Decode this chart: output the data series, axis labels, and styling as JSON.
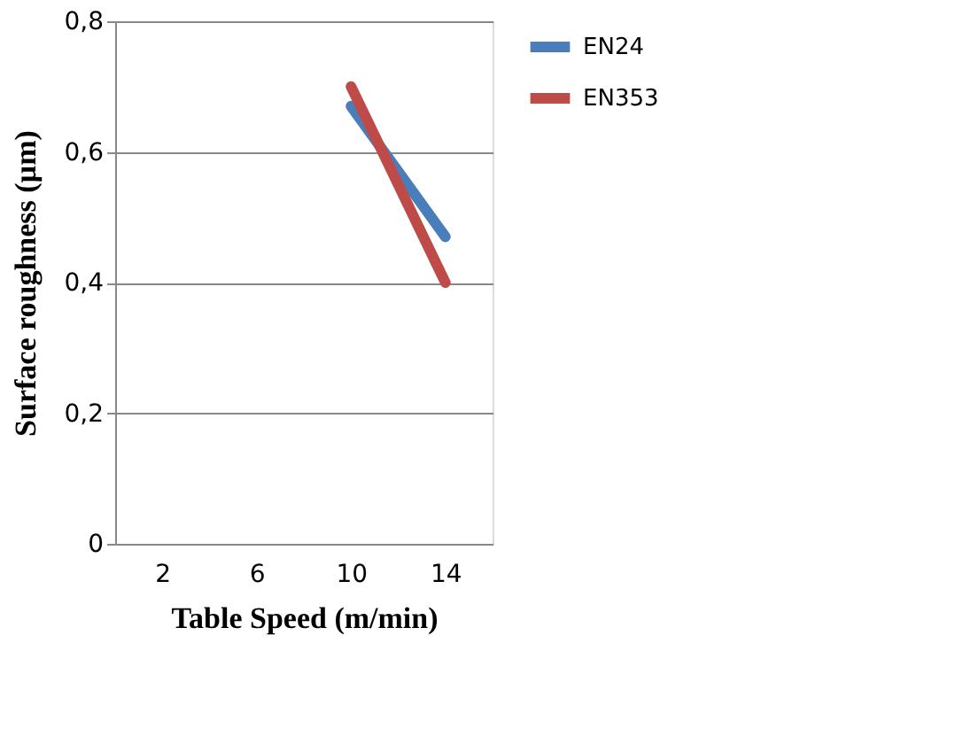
{
  "chart_data": {
    "type": "line",
    "xlabel": "Table Speed (m/min)",
    "ylabel": "Surface  roughness (µm)",
    "categories": [
      "2",
      "6",
      "10",
      "14"
    ],
    "series": [
      {
        "name": "EN24",
        "color": "#4a7ebb",
        "values": [
          null,
          null,
          0.67,
          0.47
        ]
      },
      {
        "name": "EN353",
        "color": "#be4b48",
        "values": [
          null,
          null,
          0.7,
          0.4
        ]
      }
    ],
    "ylim": [
      0,
      0.8
    ],
    "yticks": [
      0,
      {
        "value": 0.2,
        "label": "0,2"
      },
      {
        "value": 0.4,
        "label": "0,4"
      },
      {
        "value": 0.6,
        "label": "0,6"
      },
      {
        "value": 0.8,
        "label": "0,8"
      }
    ],
    "grid": "y",
    "legend": "right",
    "marker": "none",
    "line_style": "solid"
  }
}
